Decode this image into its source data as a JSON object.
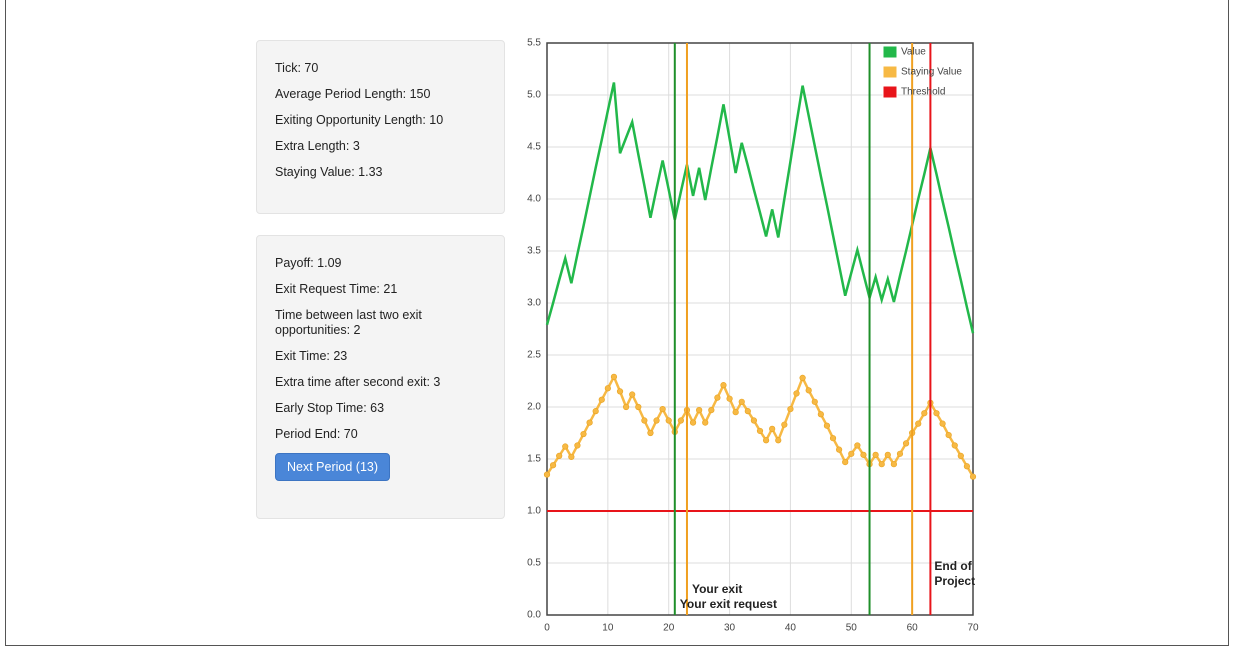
{
  "panels": [
    {
      "items": [
        "Tick: 70",
        "Average Period Length: 150",
        "Exiting Opportunity Length: 10",
        "Extra Length: 3",
        "Staying Value: 1.33"
      ]
    },
    {
      "items": [
        "Payoff: 1.09",
        "Exit Request Time: 21",
        "Time between last two exit opportunities: 2",
        "Exit Time: 23",
        "Extra time after second exit: 3",
        "Early Stop Time: 63",
        "Period End: 70"
      ],
      "button": "Next Period (13)"
    }
  ],
  "chart_data": {
    "type": "line",
    "x": [
      0,
      1,
      2,
      3,
      4,
      5,
      6,
      7,
      8,
      9,
      10,
      11,
      12,
      13,
      14,
      15,
      16,
      17,
      18,
      19,
      20,
      21,
      22,
      23,
      24,
      25,
      26,
      27,
      28,
      29,
      30,
      31,
      32,
      33,
      34,
      35,
      36,
      37,
      38,
      39,
      40,
      41,
      42,
      43,
      44,
      45,
      46,
      47,
      48,
      49,
      50,
      51,
      52,
      53,
      54,
      55,
      56,
      57,
      58,
      59,
      60,
      61,
      62,
      63,
      64,
      65,
      66,
      67,
      68,
      69,
      70
    ],
    "series": [
      {
        "name": "Value",
        "color": "#22b84a",
        "markers": false,
        "values": [
          2.79,
          3.0,
          3.22,
          3.43,
          3.19,
          3.47,
          3.74,
          4.02,
          4.3,
          4.57,
          4.85,
          5.12,
          4.44,
          4.59,
          4.74,
          4.43,
          4.13,
          3.82,
          4.1,
          4.37,
          4.09,
          3.8,
          4.07,
          4.33,
          4.03,
          4.3,
          3.99,
          4.3,
          4.6,
          4.91,
          4.58,
          4.25,
          4.54,
          4.32,
          4.09,
          3.87,
          3.64,
          3.9,
          3.63,
          4.0,
          4.36,
          4.73,
          5.09,
          4.8,
          4.51,
          4.22,
          3.94,
          3.65,
          3.36,
          3.07,
          3.29,
          3.51,
          3.28,
          3.05,
          3.25,
          3.03,
          3.23,
          3.01,
          3.26,
          3.5,
          3.75,
          4.0,
          4.24,
          4.49,
          4.24,
          3.98,
          3.73,
          3.47,
          3.22,
          2.96,
          2.71
        ]
      },
      {
        "name": "Staying Value",
        "color": "#f7b944",
        "markers": true,
        "values": [
          1.35,
          1.44,
          1.53,
          1.62,
          1.52,
          1.63,
          1.74,
          1.85,
          1.96,
          2.07,
          2.18,
          2.29,
          2.15,
          2.0,
          2.12,
          2.0,
          1.87,
          1.75,
          1.87,
          1.98,
          1.87,
          1.76,
          1.87,
          1.97,
          1.85,
          1.97,
          1.85,
          1.97,
          2.09,
          2.21,
          2.08,
          1.95,
          2.05,
          1.96,
          1.87,
          1.77,
          1.68,
          1.79,
          1.68,
          1.83,
          1.98,
          2.13,
          2.28,
          2.16,
          2.05,
          1.93,
          1.82,
          1.7,
          1.59,
          1.47,
          1.55,
          1.63,
          1.54,
          1.45,
          1.54,
          1.45,
          1.54,
          1.45,
          1.55,
          1.65,
          1.75,
          1.84,
          1.94,
          2.04,
          1.94,
          1.84,
          1.73,
          1.63,
          1.53,
          1.43,
          1.33
        ]
      }
    ],
    "threshold": {
      "name": "Threshold",
      "color": "#e8141a",
      "value": 1
    },
    "vlines": [
      {
        "x": 23,
        "color": "#f0a020",
        "label": "Your exit"
      },
      {
        "x": 21,
        "color": "#1f8f2a",
        "label": "Your exit request"
      },
      {
        "x": 53,
        "color": "#1f8f2a"
      },
      {
        "x": 60,
        "color": "#f0a020"
      },
      {
        "x": 63,
        "color": "#e8141a",
        "label": "End of Project"
      }
    ],
    "xlim": [
      0,
      70
    ],
    "xticks": [
      0,
      10,
      20,
      30,
      40,
      50,
      60,
      70
    ],
    "ylim": [
      0,
      5.5
    ],
    "yticks": [
      {
        "value": 0,
        "label": "0.0"
      },
      0.5,
      {
        "value": 1,
        "label": "1.0"
      },
      1.5,
      {
        "value": 2,
        "label": "2.0"
      },
      2.5,
      {
        "value": 3,
        "label": "3.0"
      },
      3.5,
      {
        "value": 4,
        "label": "4.0"
      },
      4.5,
      {
        "value": 5,
        "label": "5.0"
      },
      5.5
    ],
    "grid": true,
    "legend": "top-right"
  }
}
